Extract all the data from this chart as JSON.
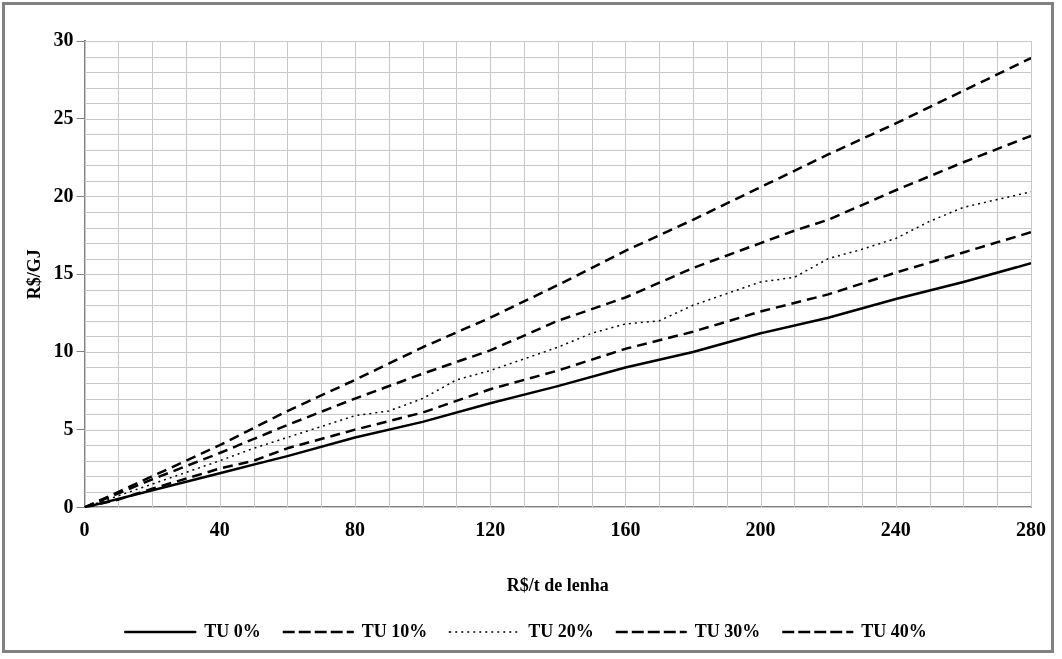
{
  "chart_data": {
    "type": "line",
    "xlabel": "R$/t de lenha",
    "ylabel": "R$/GJ",
    "xlim": [
      0,
      280
    ],
    "ylim": [
      0,
      30
    ],
    "xticks": [
      0,
      {
        "value": 20,
        "label": null
      },
      40,
      {
        "value": 60,
        "label": null
      },
      80,
      {
        "value": 100,
        "label": null
      },
      120,
      {
        "value": 140,
        "label": null
      },
      160,
      {
        "value": 180,
        "label": null
      },
      200,
      {
        "value": 220,
        "label": null
      },
      240,
      {
        "value": 260,
        "label": null
      },
      280
    ],
    "yticks": [
      0,
      5,
      10,
      15,
      20,
      25,
      30
    ],
    "grid": true,
    "legend": "bottom",
    "marker": "none",
    "series": [
      {
        "name": "TU 0%",
        "color": "#000000",
        "line_style": "solid",
        "x": [
          0,
          40,
          60,
          80,
          100,
          120,
          140,
          160,
          180,
          200,
          220,
          240,
          260,
          280
        ],
        "values": [
          0,
          2.2,
          3.3,
          4.5,
          5.5,
          6.7,
          7.8,
          9,
          10,
          11.2,
          12.2,
          13.4,
          14.5,
          15.7
        ]
      },
      {
        "name": "TU 10%",
        "color": "#000000",
        "line_style": "dashed",
        "x": [
          0,
          10,
          20,
          40,
          50,
          60,
          80,
          100,
          120,
          140,
          160,
          180,
          200,
          220,
          240,
          260,
          280
        ],
        "values": [
          0,
          0.5,
          1.2,
          2.5,
          3,
          3.8,
          5,
          6.1,
          7.6,
          8.8,
          10.2,
          11.3,
          12.6,
          13.7,
          15.1,
          16.4,
          17.7
        ]
      },
      {
        "name": "TU 20%",
        "color": "#000000",
        "line_style": "dotted",
        "x": [
          0,
          20,
          40,
          50,
          60,
          80,
          90,
          100,
          110,
          120,
          140,
          150,
          160,
          170,
          180,
          200,
          210,
          220,
          230,
          240,
          250,
          260,
          270,
          280
        ],
        "values": [
          0,
          1.5,
          3,
          3.8,
          4.5,
          5.9,
          6.2,
          7,
          8.2,
          8.8,
          10.3,
          11.2,
          11.8,
          12,
          13,
          14.5,
          14.8,
          16,
          16.6,
          17.3,
          18.4,
          19.3,
          19.8,
          20.3
        ]
      },
      {
        "name": "TU 30%",
        "color": "#000000",
        "line_style": "dashed",
        "x": [
          0,
          20,
          40,
          60,
          80,
          100,
          120,
          140,
          160,
          180,
          200,
          210,
          220,
          240,
          260,
          280
        ],
        "values": [
          0,
          1.8,
          3.5,
          5.3,
          7,
          8.6,
          10.1,
          12,
          13.5,
          15.4,
          17,
          17.8,
          18.5,
          20.4,
          22.2,
          23.9
        ]
      },
      {
        "name": "TU 40%",
        "color": "#000000",
        "line_style": "dashed",
        "x": [
          0,
          20,
          40,
          60,
          80,
          100,
          120,
          140,
          160,
          180,
          200,
          220,
          240,
          260,
          280
        ],
        "values": [
          0,
          2,
          4,
          6.2,
          8.2,
          10.3,
          12.2,
          14.3,
          16.5,
          18.5,
          20.6,
          22.7,
          24.7,
          26.8,
          28.9
        ]
      }
    ]
  }
}
